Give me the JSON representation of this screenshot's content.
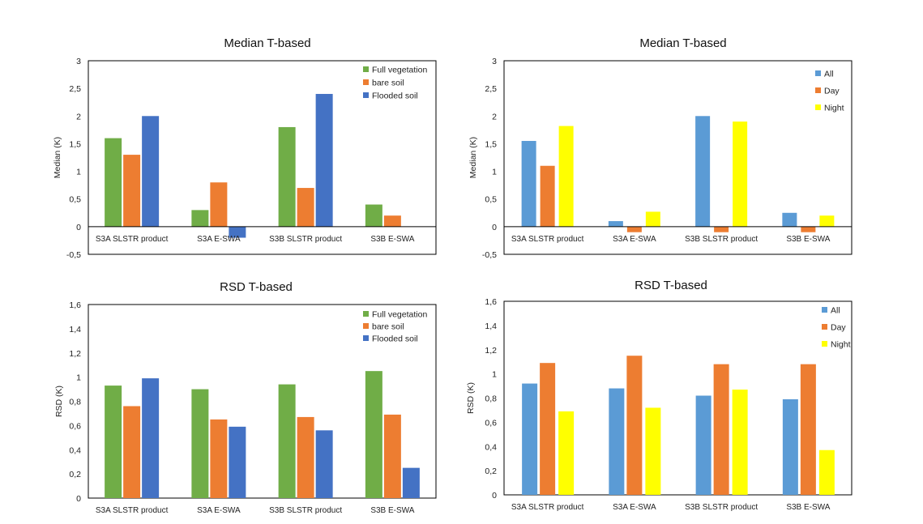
{
  "chart_data": [
    {
      "type": "bar",
      "title": "Median T-based",
      "xlabel": "",
      "ylabel": "Median (K)",
      "ylim": [
        -0.5,
        3
      ],
      "yticks": [
        "-0,5",
        "0",
        "0,5",
        "1",
        "1,5",
        "2",
        "2,5",
        "3"
      ],
      "legend_position": "top-right",
      "categories": [
        "S3A SLSTR product",
        "S3A E-SWA",
        "S3B SLSTR product",
        "S3B E-SWA"
      ],
      "series": [
        {
          "name": "Full vegetation",
          "color": "#70ad47",
          "values": [
            1.6,
            0.3,
            1.8,
            0.4
          ]
        },
        {
          "name": "bare soil",
          "color": "#ed7d31",
          "values": [
            1.3,
            0.8,
            0.7,
            0.2
          ]
        },
        {
          "name": "Flooded soil",
          "color": "#4472c4",
          "values": [
            2.0,
            -0.2,
            2.4,
            0
          ]
        }
      ]
    },
    {
      "type": "bar",
      "title": "Median T-based",
      "xlabel": "",
      "ylabel": "Median (K)",
      "ylim": [
        -0.5,
        3
      ],
      "yticks": [
        "-0,5",
        "0",
        "0,5",
        "1",
        "1,5",
        "2",
        "2,5",
        "3"
      ],
      "legend_position": "top-right",
      "categories": [
        "S3A SLSTR product",
        "S3A E-SWA",
        "S3B SLSTR product",
        "S3B E-SWA"
      ],
      "series": [
        {
          "name": "All",
          "color": "#5b9bd5",
          "values": [
            1.55,
            0.1,
            2.0,
            0.25
          ]
        },
        {
          "name": "Day",
          "color": "#ed7d31",
          "values": [
            1.1,
            -0.1,
            -0.1,
            -0.1
          ]
        },
        {
          "name": "Night",
          "color": "#ffff00",
          "values": [
            1.82,
            0.27,
            1.9,
            0.2
          ]
        }
      ]
    },
    {
      "type": "bar",
      "title": "RSD T-based",
      "xlabel": "",
      "ylabel": "RSD (K)",
      "ylim": [
        0,
        1.6
      ],
      "yticks": [
        "0",
        "0,2",
        "0,4",
        "0,6",
        "0,8",
        "1",
        "1,2",
        "1,4",
        "1,6"
      ],
      "legend_position": "top-right",
      "categories": [
        "S3A SLSTR product",
        "S3A E-SWA",
        "S3B SLSTR product",
        "S3B E-SWA"
      ],
      "series": [
        {
          "name": "Full vegetation",
          "color": "#70ad47",
          "values": [
            0.93,
            0.9,
            0.94,
            1.05
          ]
        },
        {
          "name": "bare soil",
          "color": "#ed7d31",
          "values": [
            0.76,
            0.65,
            0.67,
            0.69
          ]
        },
        {
          "name": "Flooded soil",
          "color": "#4472c4",
          "values": [
            0.99,
            0.59,
            0.56,
            0.25
          ]
        }
      ]
    },
    {
      "type": "bar",
      "title": "RSD T-based",
      "xlabel": "",
      "ylabel": "RSD (K)",
      "ylim": [
        0,
        1.6
      ],
      "yticks": [
        "0",
        "0,2",
        "0,4",
        "0,6",
        "0,8",
        "1",
        "1,2",
        "1,4",
        "1,6"
      ],
      "legend_position": "top-right",
      "categories": [
        "S3A SLSTR product",
        "S3A E-SWA",
        "S3B SLSTR product",
        "S3B E-SWA"
      ],
      "series": [
        {
          "name": "All",
          "color": "#5b9bd5",
          "values": [
            0.92,
            0.88,
            0.82,
            0.79
          ]
        },
        {
          "name": "Day",
          "color": "#ed7d31",
          "values": [
            1.09,
            1.15,
            1.08,
            1.08
          ]
        },
        {
          "name": "Night",
          "color": "#ffff00",
          "values": [
            0.69,
            0.72,
            0.87,
            0.37
          ]
        }
      ]
    }
  ]
}
